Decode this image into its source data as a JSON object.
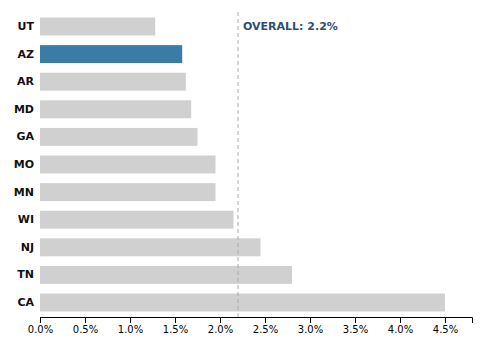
{
  "chart_data": {
    "type": "bar",
    "orientation": "horizontal",
    "categories": [
      "UT",
      "AZ",
      "AR",
      "MD",
      "GA",
      "MO",
      "MN",
      "WI",
      "NJ",
      "TN",
      "CA"
    ],
    "values": [
      1.28,
      1.58,
      1.62,
      1.68,
      1.75,
      1.95,
      1.95,
      2.15,
      2.45,
      2.8,
      4.5
    ],
    "colors": [
      "#d0d0d0",
      "#3a7ca5",
      "#d0d0d0",
      "#d0d0d0",
      "#d0d0d0",
      "#d0d0d0",
      "#d0d0d0",
      "#d0d0d0",
      "#d0d0d0",
      "#d0d0d0",
      "#d0d0d0"
    ],
    "xlim": [
      0,
      4.8
    ],
    "xticks": [
      {
        "value": 0.0,
        "label": "0.0%"
      },
      {
        "value": 0.5,
        "label": "0.5%"
      },
      {
        "value": 1.0,
        "label": "1.0%"
      },
      {
        "value": 1.5,
        "label": "1.5%"
      },
      {
        "value": 2.0,
        "label": "2.0%"
      },
      {
        "value": 2.5,
        "label": "2.5%"
      },
      {
        "value": 3.0,
        "label": "3.0%"
      },
      {
        "value": 3.5,
        "label": "3.5%"
      },
      {
        "value": 4.0,
        "label": "4.0%"
      },
      {
        "value": 4.5,
        "label": "4.5%"
      }
    ],
    "annotations": [
      {
        "text": "OVERALL: 2.2%",
        "value": 2.2,
        "color": "#2d4e6e"
      }
    ],
    "grid": false
  }
}
